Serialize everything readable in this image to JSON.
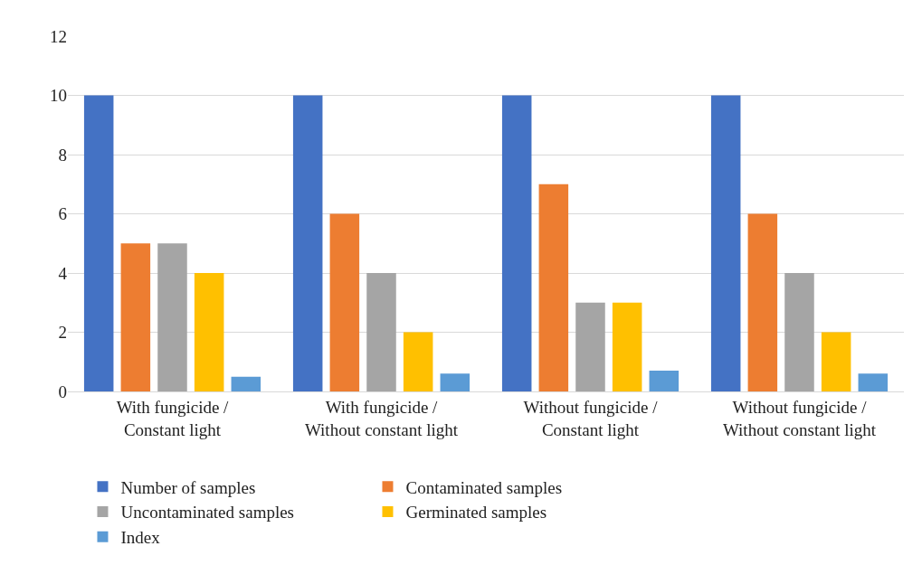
{
  "chart_data": {
    "type": "bar",
    "categories": [
      "With fungicide / Constant light",
      "With fungicide / Without constant light",
      "Without fungicide / Constant light",
      "Without fungicide / Without constant light"
    ],
    "series": [
      {
        "name": "Number of samples",
        "color": "#4472c4",
        "values": [
          10,
          10,
          10,
          10
        ]
      },
      {
        "name": "Contaminated samples",
        "color": "#ed7d31",
        "values": [
          5,
          6,
          7,
          6
        ]
      },
      {
        "name": "Uncontaminated samples",
        "color": "#a5a5a5",
        "values": [
          5,
          4,
          3,
          4
        ]
      },
      {
        "name": "Germinated samples",
        "color": "#ffc000",
        "values": [
          4,
          2,
          3,
          2
        ]
      },
      {
        "name": "Index",
        "color": "#5b9bd5",
        "values": [
          0.5,
          0.6,
          0.7,
          0.6
        ]
      }
    ],
    "ylim": [
      0,
      12
    ],
    "yticks": [
      0,
      2,
      4,
      6,
      8,
      10,
      12
    ],
    "grid": "y",
    "legend": "bottom"
  }
}
